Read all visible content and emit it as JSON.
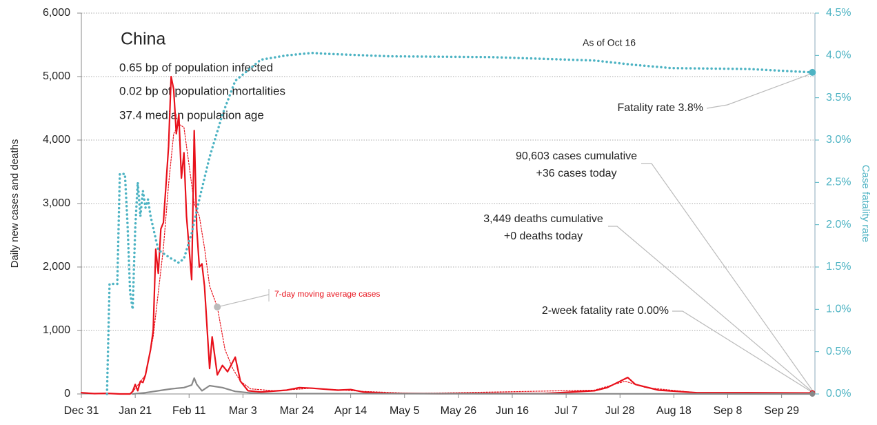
{
  "chart_data": {
    "type": "line",
    "title": "China",
    "annotations": [
      "0.65 bp of population infected",
      "0.02 bp of population mortalities",
      "37.4 median population age",
      "As of Oct 16",
      "Fatality rate 3.8%",
      "90,603 cases cumulative",
      "+36 cases today",
      "3,449 deaths cumulative",
      "+0 deaths today",
      "2-week fatality rate 0.00%"
    ],
    "ylabel": "Daily new cases and deaths",
    "y2label": "Case fatality rate",
    "xlim": [
      0,
      286
    ],
    "xticks": [
      {
        "value": 0,
        "label": "Dec 31"
      },
      {
        "value": 21,
        "label": "Jan 21"
      },
      {
        "value": 42,
        "label": "Feb 11"
      },
      {
        "value": 63,
        "label": "Mar 3"
      },
      {
        "value": 84,
        "label": "Mar 24"
      },
      {
        "value": 105,
        "label": "Apr 14"
      },
      {
        "value": 126,
        "label": "May 5"
      },
      {
        "value": 147,
        "label": "May 26"
      },
      {
        "value": 168,
        "label": "Jun 16"
      },
      {
        "value": 189,
        "label": "Jul 7"
      },
      {
        "value": 210,
        "label": "Jul 28"
      },
      {
        "value": 231,
        "label": "Aug 18"
      },
      {
        "value": 252,
        "label": "Sep 8"
      },
      {
        "value": 273,
        "label": "Sep 29"
      }
    ],
    "ylim": [
      0,
      6000
    ],
    "yticks": [
      0,
      {
        "value": 1000,
        "label": "1,000"
      },
      {
        "value": 2000,
        "label": "2,000"
      },
      {
        "value": 3000,
        "label": "3,000"
      },
      {
        "value": 4000,
        "label": "4,000"
      },
      {
        "value": 5000,
        "label": "5,000"
      },
      {
        "value": 6000,
        "label": "6,000"
      }
    ],
    "y2lim": [
      0,
      4.5
    ],
    "y2ticks": [
      {
        "value": 0,
        "label": "0.0%"
      },
      {
        "value": 0.5,
        "label": "0.5%"
      },
      {
        "value": 1,
        "label": "1.0%"
      },
      {
        "value": 1.5,
        "label": "1.5%"
      },
      {
        "value": 2,
        "label": "2.0%"
      },
      {
        "value": 2.5,
        "label": "2.5%"
      },
      {
        "value": 3,
        "label": "3.0%"
      },
      {
        "value": 3.5,
        "label": "3.5%"
      },
      {
        "value": 4,
        "label": "4.0%"
      },
      {
        "value": 4.5,
        "label": "4.5%"
      }
    ],
    "grid": true,
    "series": [
      {
        "color": "#e8111b",
        "style": "solid",
        "x": [
          0,
          5,
          10,
          15,
          19,
          20,
          21,
          22,
          23,
          24,
          25,
          27,
          28,
          29,
          30,
          31,
          32,
          33,
          34,
          35,
          36,
          37,
          38,
          39,
          40,
          41,
          43,
          44,
          45,
          46,
          47,
          48,
          50,
          51,
          53,
          55,
          57,
          60,
          62,
          65,
          70,
          80,
          85,
          90,
          100,
          105,
          110,
          120,
          140,
          160,
          180,
          200,
          205,
          210,
          213,
          216,
          225,
          240,
          260,
          285
        ],
        "values": [
          20,
          5,
          10,
          0,
          0,
          40,
          150,
          50,
          200,
          180,
          300,
          700,
          1000,
          2280,
          1900,
          2600,
          2700,
          3300,
          3900,
          5000,
          4800,
          4100,
          4400,
          3400,
          3800,
          2800,
          1800,
          4150,
          2600,
          2000,
          2050,
          1700,
          400,
          900,
          300,
          450,
          350,
          580,
          200,
          50,
          30,
          60,
          100,
          90,
          60,
          70,
          30,
          10,
          5,
          10,
          5,
          50,
          100,
          200,
          260,
          150,
          60,
          20,
          20,
          15
        ]
      },
      {
        "name": "7-day moving average cases",
        "color": "#e8111b",
        "style": "dotted",
        "x": [
          20,
          25,
          28,
          30,
          32,
          34,
          36,
          38,
          40,
          42,
          44,
          46,
          48,
          50,
          53,
          56,
          59,
          62,
          66,
          75,
          90,
          110,
          130,
          200,
          212,
          220,
          240,
          285
        ],
        "values": [
          30,
          300,
          900,
          1600,
          2300,
          3300,
          4100,
          4250,
          4200,
          3600,
          3000,
          2800,
          2300,
          1700,
          1370,
          700,
          400,
          200,
          80,
          50,
          90,
          40,
          8,
          60,
          200,
          100,
          20,
          15
        ]
      },
      {
        "color": "#888888",
        "style": "solid",
        "x": [
          20,
          25,
          30,
          35,
          40,
          43,
          44,
          45,
          47,
          50,
          55,
          60,
          65,
          70,
          285
        ],
        "values": [
          0,
          20,
          50,
          80,
          100,
          140,
          250,
          150,
          50,
          130,
          100,
          40,
          20,
          5,
          0
        ]
      },
      {
        "color": "#4db3c3",
        "style": "bigdot",
        "axis": "y2",
        "x": [
          10,
          11,
          14,
          15,
          17,
          18,
          19,
          20,
          21,
          22,
          23,
          24,
          25,
          26,
          27,
          30,
          35,
          38,
          40,
          43,
          46,
          50,
          55,
          60,
          70,
          80,
          90,
          95,
          120,
          160,
          200,
          215,
          230,
          260,
          285
        ],
        "values": [
          0,
          1.3,
          1.3,
          2.6,
          2.6,
          2.0,
          1.2,
          1.0,
          1.95,
          2.5,
          2.1,
          2.4,
          2.2,
          2.3,
          2.1,
          1.7,
          1.6,
          1.55,
          1.6,
          1.9,
          2.3,
          2.8,
          3.3,
          3.7,
          3.95,
          4.0,
          4.03,
          4.02,
          3.99,
          3.98,
          3.94,
          3.89,
          3.85,
          3.84,
          3.8
        ]
      }
    ]
  }
}
